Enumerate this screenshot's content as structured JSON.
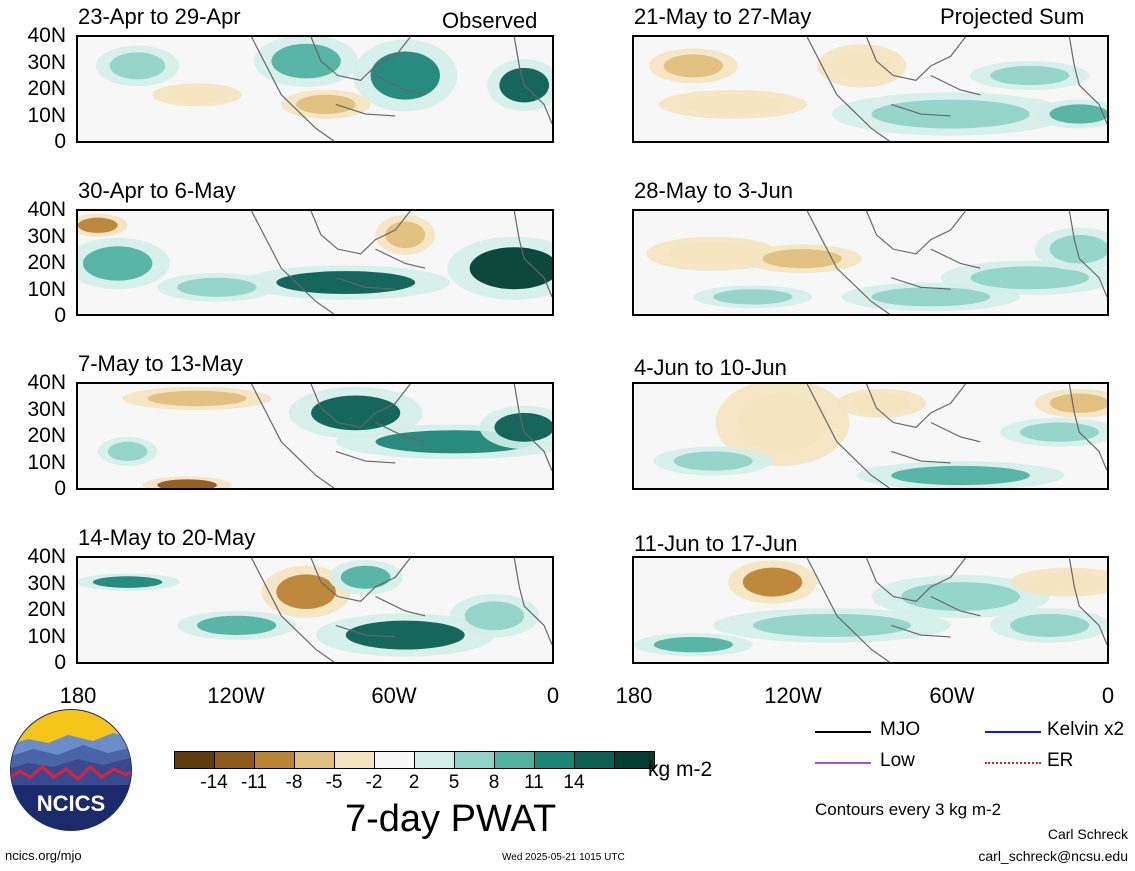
{
  "columns": {
    "left": {
      "label": "Observed"
    },
    "right": {
      "label": "Projected Sum"
    }
  },
  "panels": [
    {
      "period": "23-Apr to 29-Apr",
      "column": "left"
    },
    {
      "period": "30-Apr to 6-May",
      "column": "left"
    },
    {
      "period": "7-May to 13-May",
      "column": "left"
    },
    {
      "period": "14-May to 20-May",
      "column": "left"
    },
    {
      "period": "21-May to 27-May",
      "column": "right"
    },
    {
      "period": "28-May to 3-Jun",
      "column": "right"
    },
    {
      "period": "4-Jun to 10-Jun",
      "column": "right"
    },
    {
      "period": "11-Jun to 17-Jun",
      "column": "right"
    }
  ],
  "latitude_labels": [
    "40N",
    "30N",
    "20N",
    "10N",
    "0"
  ],
  "longitude_labels": [
    "180",
    "120W",
    "60W",
    "0"
  ],
  "colorbar": {
    "colors": [
      "#5e3a0c",
      "#8e5a1a",
      "#bb8435",
      "#dfc07e",
      "#f4e4c0",
      "#f7f7f7",
      "#d4eeea",
      "#92d4c8",
      "#52b1a2",
      "#1d8677",
      "#0b5f53",
      "#033d32"
    ],
    "tick_labels": [
      "-14",
      "-11",
      "-8",
      "-5",
      "-2",
      "2",
      "5",
      "8",
      "11",
      "14"
    ],
    "units": "kg m-2",
    "title": "7-day PWAT"
  },
  "contour_legend": {
    "items": [
      {
        "label": "MJO",
        "color": "#000000"
      },
      {
        "label": "Kelvin x2",
        "color": "#1a1ad8"
      },
      {
        "label": "Low",
        "color": "#9b59d0"
      },
      {
        "label": "ER",
        "color": "#e02020"
      }
    ],
    "note": "Contours every 3 kg m-2"
  },
  "footer": {
    "logo_text": "NCICS",
    "url": "ncics.org/mjo",
    "timestamp": "Wed 2025-05-21 1015 UTC",
    "author": "Carl Schreck",
    "email": "carl_schreck@ncsu.edu"
  }
}
